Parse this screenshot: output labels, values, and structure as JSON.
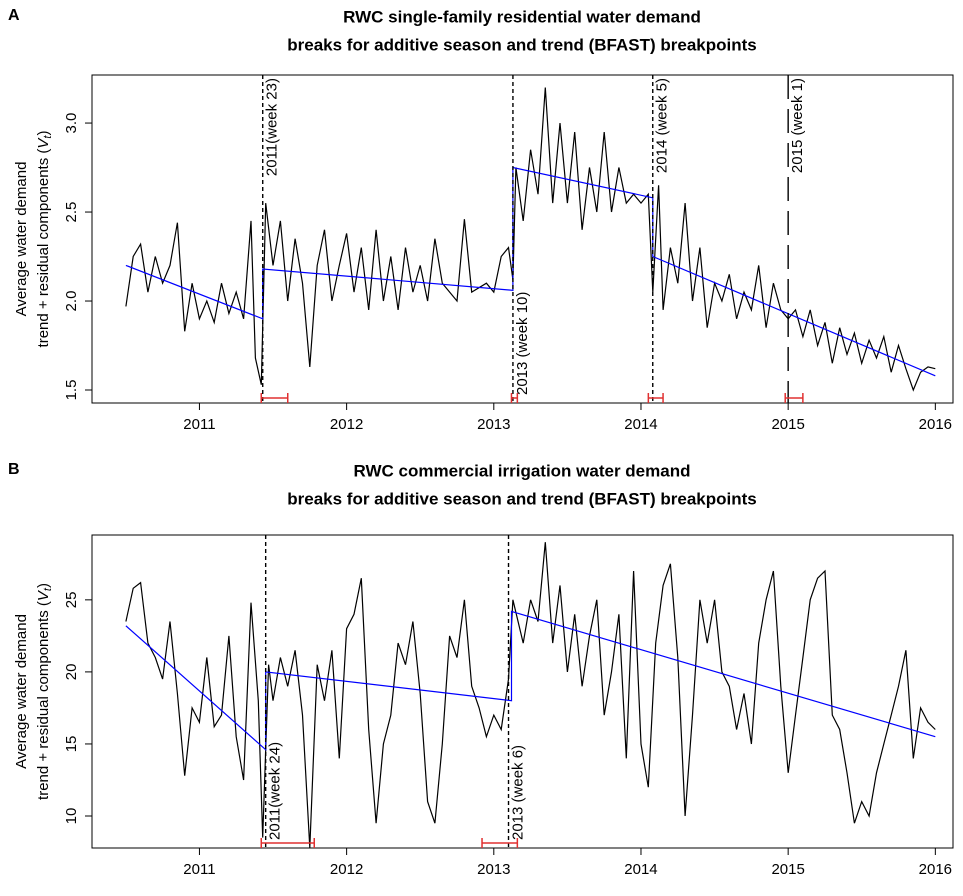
{
  "chart_data": [
    {
      "type": "line",
      "panel": "A",
      "title": [
        "RWC single-family residential water demand",
        "breaks for additive season and trend (BFAST) breakpoints"
      ],
      "ylabel": {
        "line1": "Average water demand",
        "line2": "trend + residual components (",
        "symbol": "V",
        "subscript": "t",
        "suffix": ")"
      },
      "xlim": [
        2010.27,
        2016.12
      ],
      "ylim": [
        1.427,
        3.27
      ],
      "xticks": [
        2011,
        2012,
        2013,
        2014,
        2015,
        2016
      ],
      "yticks": [
        1.5,
        {
          "value": 2,
          "label": "2.0"
        },
        2.5,
        {
          "value": 3,
          "label": "3.0"
        }
      ],
      "color": "#000000",
      "x": [
        2010.5,
        2010.55,
        2010.6,
        2010.65,
        2010.7,
        2010.75,
        2010.8,
        2010.85,
        2010.9,
        2010.95,
        2011.0,
        2011.05,
        2011.1,
        2011.15,
        2011.2,
        2011.25,
        2011.3,
        2011.35,
        2011.38,
        2011.42,
        2011.45,
        2011.5,
        2011.55,
        2011.6,
        2011.65,
        2011.7,
        2011.75,
        2011.8,
        2011.85,
        2011.9,
        2011.95,
        2012.0,
        2012.05,
        2012.1,
        2012.15,
        2012.2,
        2012.25,
        2012.3,
        2012.35,
        2012.4,
        2012.45,
        2012.5,
        2012.55,
        2012.6,
        2012.65,
        2012.75,
        2012.8,
        2012.85,
        2012.95,
        2013.0,
        2013.05,
        2013.1,
        2013.13,
        2013.15,
        2013.2,
        2013.25,
        2013.3,
        2013.35,
        2013.4,
        2013.45,
        2013.5,
        2013.55,
        2013.6,
        2013.65,
        2013.7,
        2013.75,
        2013.8,
        2013.85,
        2013.9,
        2013.95,
        2014.0,
        2014.05,
        2014.08,
        2014.12,
        2014.15,
        2014.2,
        2014.25,
        2014.3,
        2014.35,
        2014.4,
        2014.45,
        2014.5,
        2014.55,
        2014.6,
        2014.65,
        2014.7,
        2014.75,
        2014.8,
        2014.85,
        2014.9,
        2014.95,
        2015.0,
        2015.05,
        2015.1,
        2015.15,
        2015.2,
        2015.25,
        2015.3,
        2015.35,
        2015.4,
        2015.45,
        2015.5,
        2015.55,
        2015.6,
        2015.65,
        2015.7,
        2015.75,
        2015.8,
        2015.85,
        2015.9,
        2015.95,
        2016.0
      ],
      "values": [
        1.97,
        2.25,
        2.32,
        2.05,
        2.25,
        2.1,
        2.2,
        2.44,
        1.83,
        2.1,
        1.9,
        2.0,
        1.88,
        2.1,
        1.93,
        2.05,
        1.9,
        2.45,
        1.68,
        1.53,
        2.55,
        2.2,
        2.45,
        2.0,
        2.35,
        2.1,
        1.63,
        2.2,
        2.4,
        2.0,
        2.2,
        2.38,
        2.05,
        2.3,
        1.95,
        2.4,
        2.0,
        2.25,
        1.95,
        2.3,
        2.05,
        2.2,
        2.0,
        2.35,
        2.1,
        2.0,
        2.46,
        2.05,
        2.1,
        2.05,
        2.25,
        2.3,
        2.12,
        2.75,
        2.45,
        2.85,
        2.6,
        3.2,
        2.55,
        3.0,
        2.55,
        2.95,
        2.4,
        2.75,
        2.5,
        2.95,
        2.5,
        2.75,
        2.55,
        2.6,
        2.55,
        2.6,
        2.05,
        2.65,
        1.95,
        2.3,
        2.1,
        2.55,
        2.0,
        2.3,
        1.85,
        2.1,
        2.0,
        2.15,
        1.9,
        2.05,
        1.95,
        2.2,
        1.85,
        2.1,
        1.95,
        1.9,
        1.95,
        1.8,
        1.95,
        1.75,
        1.88,
        1.65,
        1.85,
        1.7,
        1.82,
        1.65,
        1.78,
        1.68,
        1.8,
        1.6,
        1.75,
        1.62,
        1.5,
        1.6,
        1.63,
        1.62
      ],
      "trend": {
        "color": "#0000ff",
        "x": [
          2010.5,
          2011.43,
          2011.43,
          2013.13,
          2013.13,
          2014.08,
          2014.08,
          2016.0
        ],
        "values": [
          2.2,
          1.9,
          2.18,
          2.06,
          2.75,
          2.58,
          2.25,
          1.58
        ]
      },
      "breakpoints": [
        {
          "x": 2011.43,
          "label": "2011(week 23)",
          "label_pos": "top",
          "dash": "short"
        },
        {
          "x": 2013.13,
          "label": "2013 (week 10)",
          "label_pos": "bottom",
          "dash": "short"
        },
        {
          "x": 2014.08,
          "label": "2014 (week 5)",
          "label_pos": "top",
          "dash": "short"
        },
        {
          "x": 2015.0,
          "label": "2015 (week 1)",
          "label_pos": "top",
          "dash": "long"
        }
      ],
      "intervals": {
        "color": "#e03030",
        "ranges": [
          [
            2011.42,
            2011.6
          ],
          [
            2013.12,
            2013.16
          ],
          [
            2014.05,
            2014.15
          ],
          [
            2014.98,
            2015.1
          ]
        ]
      }
    },
    {
      "type": "line",
      "panel": "B",
      "title": [
        "RWC commercial irrigation water demand",
        "breaks for additive season and trend (BFAST) breakpoints"
      ],
      "ylabel": {
        "line1": "Average water demand",
        "line2": "trend + residual components (",
        "symbol": "V",
        "subscript": "t",
        "suffix": ")"
      },
      "xlim": [
        2010.27,
        2016.12
      ],
      "ylim": [
        7.78,
        29.5
      ],
      "xticks": [
        2011,
        2012,
        2013,
        2014,
        2015,
        2016
      ],
      "yticks": [
        10,
        15,
        20,
        25
      ],
      "color": "#000000",
      "x": [
        2010.5,
        2010.55,
        2010.6,
        2010.65,
        2010.7,
        2010.75,
        2010.8,
        2010.85,
        2010.9,
        2010.95,
        2011.0,
        2011.05,
        2011.1,
        2011.15,
        2011.2,
        2011.25,
        2011.3,
        2011.35,
        2011.4,
        2011.43,
        2011.47,
        2011.5,
        2011.55,
        2011.6,
        2011.65,
        2011.7,
        2011.75,
        2011.8,
        2011.85,
        2011.9,
        2011.95,
        2012.0,
        2012.05,
        2012.1,
        2012.15,
        2012.2,
        2012.25,
        2012.3,
        2012.35,
        2012.4,
        2012.45,
        2012.5,
        2012.55,
        2012.6,
        2012.65,
        2012.7,
        2012.75,
        2012.8,
        2012.85,
        2012.9,
        2012.95,
        2013.0,
        2013.05,
        2013.1,
        2013.13,
        2013.2,
        2013.25,
        2013.3,
        2013.35,
        2013.4,
        2013.45,
        2013.5,
        2013.55,
        2013.6,
        2013.65,
        2013.7,
        2013.75,
        2013.8,
        2013.85,
        2013.9,
        2013.95,
        2014.0,
        2014.05,
        2014.1,
        2014.15,
        2014.2,
        2014.25,
        2014.3,
        2014.35,
        2014.4,
        2014.45,
        2014.5,
        2014.55,
        2014.6,
        2014.65,
        2014.7,
        2014.75,
        2014.8,
        2014.85,
        2014.9,
        2014.95,
        2015.0,
        2015.05,
        2015.1,
        2015.15,
        2015.2,
        2015.25,
        2015.3,
        2015.35,
        2015.4,
        2015.45,
        2015.5,
        2015.55,
        2015.6,
        2015.65,
        2015.7,
        2015.75,
        2015.8,
        2015.85,
        2015.9,
        2015.95,
        2016.0
      ],
      "values": [
        23.5,
        25.8,
        26.2,
        22,
        21,
        19.5,
        23.5,
        18.5,
        12.8,
        17.5,
        16.5,
        21,
        16.2,
        17,
        22.5,
        15.5,
        12.5,
        24.8,
        18,
        8.5,
        20.5,
        18,
        21,
        19,
        21.5,
        17,
        7.8,
        20.5,
        18,
        21.5,
        14,
        23,
        24,
        26.5,
        16,
        9.5,
        15,
        17,
        22,
        20.5,
        23.5,
        18.5,
        11,
        9.5,
        15,
        22.5,
        21,
        25,
        19,
        17.5,
        15.5,
        17,
        16,
        19.5,
        25,
        22,
        25,
        23.5,
        29,
        22,
        26,
        20,
        24,
        19,
        22.5,
        25,
        17,
        20,
        24,
        14,
        27,
        15,
        12,
        22,
        26,
        27.5,
        21,
        10,
        17,
        25,
        22,
        25,
        20,
        19,
        16,
        18.5,
        15,
        22,
        25,
        27,
        19,
        13,
        17,
        21,
        25,
        26.5,
        27,
        17,
        16,
        13,
        9.5,
        11,
        10,
        13,
        15,
        17,
        19,
        21.5,
        14,
        17.5,
        16.5,
        16
      ],
      "trend": {
        "color": "#0000ff",
        "x": [
          2010.5,
          2011.45,
          2011.45,
          2013.12,
          2013.12,
          2016.0
        ],
        "values": [
          23.2,
          14.6,
          20,
          18,
          24.2,
          15.5
        ]
      },
      "breakpoints": [
        {
          "x": 2011.45,
          "label": "2011(week 24)",
          "label_pos": "bottom",
          "dash": "short"
        },
        {
          "x": 2013.1,
          "label": "2013 (week 6)",
          "label_pos": "bottom",
          "dash": "short"
        }
      ],
      "intervals": {
        "color": "#e03030",
        "ranges": [
          [
            2011.42,
            2011.78
          ],
          [
            2012.92,
            2013.16
          ]
        ]
      }
    }
  ]
}
